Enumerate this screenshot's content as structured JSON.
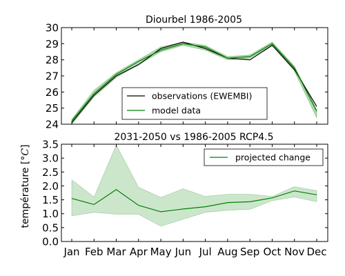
{
  "figure": {
    "shared_ylabel": "température [$^\\circ C$]"
  },
  "chart_data": [
    {
      "type": "line",
      "title": "Diourbel 1986-2005",
      "categories": [
        "Jan",
        "Feb",
        "Mar",
        "Apr",
        "May",
        "Jun",
        "Jul",
        "Aug",
        "Sep",
        "Oct",
        "Nov",
        "Dec"
      ],
      "ylim": [
        24,
        30
      ],
      "yticks": [
        24,
        25,
        26,
        27,
        28,
        29,
        30
      ],
      "grid": false,
      "legend": "lower-center",
      "series": [
        {
          "name": "observations (EWEMBI)",
          "color": "#000000",
          "values": [
            24.1,
            25.8,
            27.0,
            27.7,
            28.7,
            29.1,
            28.7,
            28.1,
            28.0,
            28.9,
            27.4,
            25.1
          ]
        },
        {
          "name": "model data",
          "color": "#008000",
          "values": [
            24.2,
            25.9,
            27.1,
            27.9,
            28.6,
            29.0,
            28.8,
            28.1,
            28.2,
            29.0,
            27.5,
            24.8
          ],
          "band_lower": [
            24.0,
            25.7,
            26.9,
            27.7,
            28.5,
            28.9,
            28.6,
            28.0,
            28.1,
            28.9,
            27.3,
            24.4
          ],
          "band_upper": [
            24.3,
            26.1,
            27.2,
            28.0,
            28.8,
            29.1,
            28.9,
            28.2,
            28.3,
            29.1,
            27.6,
            24.9
          ]
        }
      ]
    },
    {
      "type": "line",
      "title": "2031-2050 vs 1986-2005 RCP4.5",
      "categories": [
        "Jan",
        "Feb",
        "Mar",
        "Apr",
        "May",
        "Jun",
        "Jul",
        "Aug",
        "Sep",
        "Oct",
        "Nov",
        "Dec"
      ],
      "ylim": [
        0.0,
        3.5
      ],
      "yticks": [
        "0.0",
        "0.5",
        "1.0",
        "1.5",
        "2.0",
        "2.5",
        "3.0",
        "3.5"
      ],
      "grid": false,
      "legend": "top-right",
      "series": [
        {
          "name": "projected change",
          "color": "#008000",
          "values": [
            1.55,
            1.33,
            1.87,
            1.3,
            1.07,
            1.17,
            1.25,
            1.4,
            1.43,
            1.57,
            1.82,
            1.68
          ],
          "band_lower": [
            0.92,
            1.05,
            0.98,
            0.98,
            0.55,
            0.8,
            1.05,
            1.12,
            1.16,
            1.47,
            1.6,
            1.43
          ],
          "band_upper": [
            2.22,
            1.6,
            3.47,
            1.95,
            1.58,
            1.9,
            1.62,
            1.7,
            1.7,
            1.62,
            1.97,
            1.83
          ]
        }
      ]
    }
  ]
}
